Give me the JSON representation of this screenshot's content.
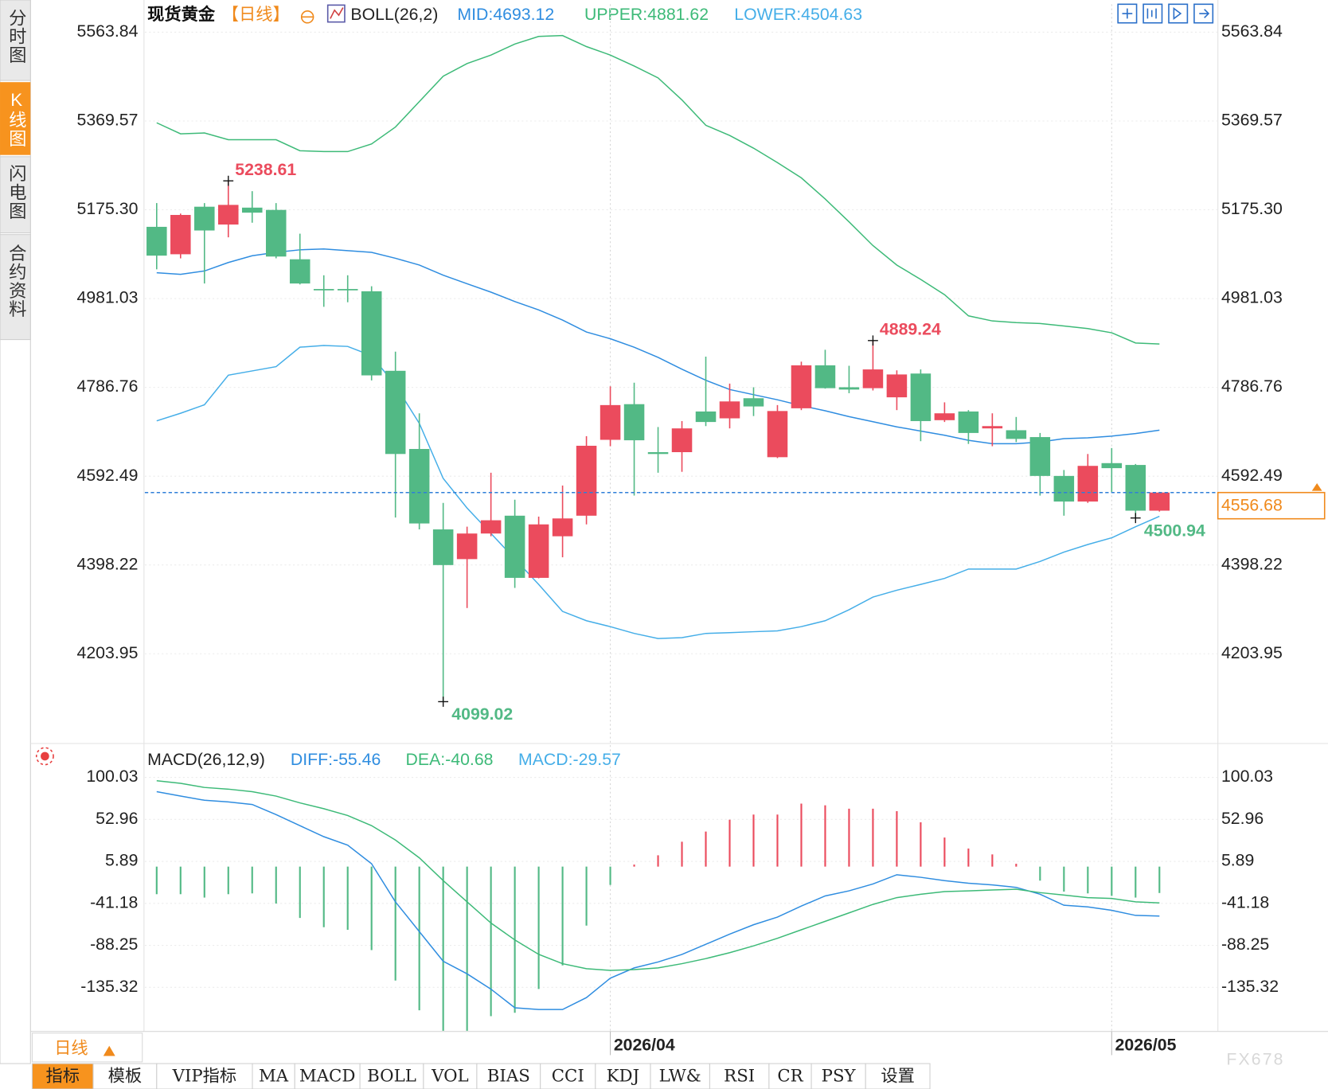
{
  "sidebar_tabs": [
    "分时图",
    "K线图",
    "闪电图",
    "合约资料"
  ],
  "period": "日线",
  "indicator_tabs": [
    "指标",
    "模板",
    "VIP指标",
    "MA",
    "MACD",
    "BOLL",
    "VOL",
    "BIAS",
    "CCI",
    "KDJ",
    "LW&",
    "RSI",
    "CR",
    "PSY",
    "设置"
  ],
  "watermark": "FX678",
  "chart_data": [
    {
      "type": "candlestick",
      "title": "现货黄金",
      "subtitle": "【日线】",
      "indicator": "BOLL(26,2)",
      "categories": [
        null,
        null,
        null,
        null,
        null,
        null,
        null,
        null,
        null,
        null,
        null,
        null,
        null,
        null,
        null,
        null,
        null,
        null,
        null,
        "2026/04",
        null,
        null,
        null,
        null,
        null,
        null,
        null,
        null,
        null,
        null,
        null,
        null,
        null,
        null,
        null,
        null,
        null,
        null,
        null,
        null,
        "2026/05",
        null,
        null
      ],
      "open": [
        5138,
        5078,
        5182,
        5143,
        5180,
        5175,
        5067,
        5002,
        5002,
        4997,
        4823,
        4652,
        4476,
        4411,
        4467,
        4506,
        4370,
        4461,
        4506,
        4672,
        4750,
        4645,
        4645,
        4734,
        4719,
        4763,
        4634,
        4741,
        4835,
        4787,
        4785,
        4765,
        4817,
        4715,
        4734,
        4697,
        4693,
        4678,
        4593,
        4537,
        4621,
        4617,
        4517
      ],
      "high": [
        5190,
        5167,
        5190,
        5238.61,
        5216,
        5190,
        5123,
        5032,
        5032,
        5008,
        4865,
        4730,
        4534,
        4482,
        4600,
        4541,
        4504,
        4572,
        4680,
        4789,
        4797,
        4700,
        4713,
        4854,
        4795,
        4787,
        4748,
        4843,
        4869,
        4834,
        4889.24,
        4824,
        4826,
        4754,
        4737,
        4730,
        4722,
        4687,
        4606,
        4641,
        4654,
        4619,
        4558
      ],
      "low": [
        5045,
        5069,
        5014,
        5115,
        5147,
        5069,
        5012,
        4963,
        4973,
        4802,
        4502,
        4476,
        4099.02,
        4304,
        4461,
        4348,
        4369,
        4415,
        4487,
        4658,
        4550,
        4600,
        4602,
        4702,
        4697,
        4724,
        4632,
        4737,
        4784,
        4774,
        4780,
        4737,
        4669,
        4711,
        4663,
        4658,
        4667,
        4550,
        4506,
        4534,
        4558,
        4500.94,
        4515
      ],
      "close": [
        5075,
        5164,
        5130,
        5186,
        5169,
        5073,
        5014,
        4999,
        4999,
        4813,
        4641,
        4489,
        4398,
        4467,
        4496,
        4370,
        4487,
        4500,
        4659,
        4748,
        4671,
        4641,
        4697,
        4711,
        4756,
        4745,
        4735,
        4835,
        4785,
        4782,
        4826,
        4815,
        4713,
        4730,
        4687,
        4702,
        4674,
        4593,
        4537,
        4615,
        4610,
        4517,
        4556.68
      ],
      "high_labels": [
        null,
        null,
        null,
        "5238.61",
        null,
        null,
        null,
        null,
        null,
        null,
        null,
        null,
        null,
        null,
        null,
        null,
        null,
        null,
        null,
        null,
        null,
        null,
        null,
        null,
        null,
        null,
        null,
        null,
        null,
        null,
        "4889.24",
        null,
        null,
        null,
        null,
        null,
        null,
        null,
        null,
        null,
        null,
        null,
        null
      ],
      "low_labels": [
        null,
        null,
        null,
        null,
        null,
        null,
        null,
        null,
        null,
        null,
        null,
        null,
        "4099.02",
        null,
        null,
        null,
        null,
        null,
        null,
        null,
        null,
        null,
        null,
        null,
        null,
        null,
        null,
        null,
        null,
        null,
        null,
        null,
        null,
        null,
        null,
        null,
        null,
        null,
        null,
        null,
        null,
        "4500.94",
        null
      ],
      "up_color": "#eb4b5d",
      "down_color": "#52b985",
      "last_price": 4556.68,
      "ylim": [
        4007.6,
        5625.0
      ],
      "yticks": [
        5563.84,
        5369.57,
        {
          "value": 5175.3,
          "label": "5175.30"
        },
        4981.03,
        4786.76,
        4592.49,
        4398.22,
        4203.95
      ],
      "grid": true,
      "series": [
        {
          "name": "MID:4693.12",
          "color": "#2f8de0",
          "values": [
            5037.6,
            5033.9,
            5041.4,
            5059.9,
            5074.7,
            5082.1,
            5087.7,
            5089.5,
            5085.8,
            5082.1,
            5069.1,
            5054.3,
            5032.1,
            5013.5,
            4995.0,
            4974.6,
            4956.1,
            4933.9,
            4907.9,
            4893.1,
            4874.6,
            4852.4,
            4826.4,
            4802.3,
            4782.0,
            4770.8,
            4759.7,
            4746.8,
            4735.6,
            4722.7,
            4711.6,
            4700.4,
            4691.2,
            4681.9,
            4670.8,
            4663.4,
            4663.4,
            4667.1,
            4674.5,
            4676.4,
            4680.1,
            4685.6,
            4693.12
          ]
        },
        {
          "name": "UPPER:4881.62",
          "color": "#3dba78",
          "values": [
            5365.6,
            5341.5,
            5343.4,
            5328.5,
            5328.5,
            5328.5,
            5304.5,
            5302.6,
            5302.6,
            5319.3,
            5356.3,
            5411.9,
            5467.5,
            5495.3,
            5513.8,
            5537.9,
            5554.6,
            5556.4,
            5532.3,
            5513.8,
            5489.7,
            5463.8,
            5415.6,
            5360.0,
            5337.8,
            5310.0,
            5278.5,
            5245.2,
            5198.8,
            5148.8,
            5096.9,
            5054.3,
            5022.8,
            4989.5,
            4943.2,
            4932.1,
            4928.4,
            4926.5,
            4921.0,
            4915.4,
            4906.1,
            4883.9,
            4881.62
          ]
        },
        {
          "name": "LOWER:4504.63",
          "color": "#45aee8",
          "values": [
            4713.4,
            4730.1,
            4748.6,
            4813.5,
            4822.7,
            4832.0,
            4874.6,
            4878.3,
            4876.4,
            4856.1,
            4791.2,
            4707.9,
            4587.4,
            4522.6,
            4467.0,
            4411.4,
            4355.8,
            4296.6,
            4276.2,
            4263.2,
            4248.4,
            4237.3,
            4239.1,
            4248.4,
            4250.2,
            4252.1,
            4254.0,
            4263.2,
            4276.2,
            4300.3,
            4328.0,
            4342.9,
            4355.8,
            4368.8,
            4389.2,
            4389.2,
            4389.2,
            4405.9,
            4426.3,
            4442.9,
            4457.7,
            4481.8,
            4504.63
          ]
        }
      ]
    },
    {
      "type": "macd",
      "title": "MACD(26,12,9)",
      "up_color": "#eb4b5d",
      "down_color": "#52b985",
      "ylim": [
        -184.7,
        136.1
      ],
      "yticks": [
        100.03,
        52.96,
        5.89,
        -41.18,
        -88.25,
        -135.32
      ],
      "grid": true,
      "series": [
        {
          "name": "DIFF:-55.46",
          "type": "line",
          "color": "#2f8de0",
          "values": [
            84.0,
            79.1,
            74.4,
            72.5,
            69.7,
            58.3,
            45.9,
            33.6,
            24.1,
            3.2,
            -39.5,
            -72.8,
            -106.0,
            -120.2,
            -137.3,
            -158.2,
            -160.1,
            -160.1,
            -146.8,
            -125.0,
            -113.5,
            -106.9,
            -98.4,
            -87.0,
            -75.6,
            -65.1,
            -56.6,
            -44.2,
            -32.8,
            -27.1,
            -19.5,
            -9.1,
            -12.0,
            -15.7,
            -18.6,
            -20.5,
            -23.3,
            -30.9,
            -43.3,
            -45.2,
            -49.0,
            -54.7,
            -55.46
          ]
        },
        {
          "name": "DEA:-40.68",
          "type": "line",
          "color": "#3dba78",
          "values": [
            96.2,
            93.4,
            88.7,
            86.8,
            84.0,
            79.1,
            71.5,
            64.9,
            57.3,
            45.9,
            29.8,
            9.9,
            -15.7,
            -39.5,
            -63.2,
            -82.2,
            -98.3,
            -108.8,
            -114.4,
            -116.3,
            -115.4,
            -113.5,
            -108.8,
            -103.1,
            -96.4,
            -88.8,
            -80.3,
            -70.8,
            -61.3,
            -51.8,
            -42.3,
            -34.7,
            -30.9,
            -28.0,
            -27.1,
            -26.2,
            -25.3,
            -29.1,
            -31.9,
            -34.7,
            -35.7,
            -39.5,
            -40.68
          ]
        },
        {
          "name": "MACD:-29.57",
          "type": "bar",
          "color": "#45aee8",
          "values": [
            -30.9,
            -30.9,
            -34.7,
            -30.9,
            -30.0,
            -41.4,
            -57.5,
            -67.9,
            -70.8,
            -93.6,
            -127.7,
            -161.0,
            -184.0,
            -184.0,
            -167.6,
            -163.8,
            -137.2,
            -110.7,
            -66.1,
            -20.5,
            2.3,
            12.7,
            27.9,
            39.3,
            52.6,
            58.3,
            58.3,
            70.6,
            68.7,
            64.9,
            64.9,
            62.1,
            49.7,
            32.6,
            20.3,
            13.7,
            3.2,
            -15.7,
            -28.0,
            -30.0,
            -32.8,
            -34.7,
            -29.57
          ]
        }
      ]
    }
  ]
}
